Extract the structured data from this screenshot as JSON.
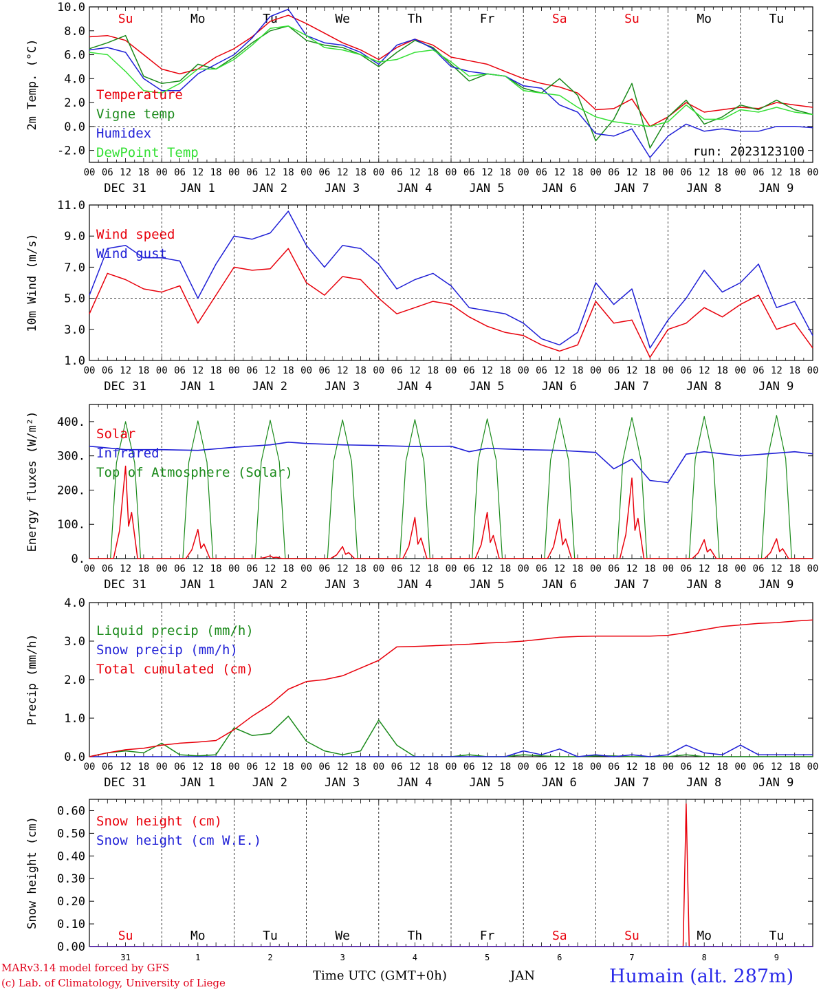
{
  "colors": {
    "red": "#e8000b",
    "green": "#1a8a1a",
    "blue": "#1f1fd6",
    "lightgreen": "#35e035",
    "darkred": "#cc0000"
  },
  "chart_data": [
    {
      "type": "line",
      "ylabel": "2m Temp. (°C)",
      "ylim": [
        -3,
        10
      ],
      "yticks": [
        "10.0",
        "8.0",
        "6.0",
        "4.0",
        "2.0",
        "0.0",
        "-2.0"
      ],
      "ytick_values": [
        10,
        8,
        6,
        4,
        2,
        0,
        -2
      ],
      "run_label": "run: 2023123100",
      "weekdays": [
        "Su",
        "Mo",
        "Tu",
        "We",
        "Th",
        "Fr",
        "Sa",
        "Su",
        "Mo",
        "Tu"
      ],
      "weekday_colors": [
        "red",
        "black",
        "black",
        "black",
        "black",
        "black",
        "red",
        "red",
        "black",
        "black"
      ],
      "x_hours": [
        0,
        6,
        12,
        18,
        24,
        30,
        36,
        42,
        48,
        54,
        60,
        66,
        72,
        78,
        84,
        90,
        96,
        102,
        108,
        114,
        120,
        126,
        132,
        138,
        144,
        150,
        156,
        162,
        168,
        174,
        180,
        186,
        192,
        198,
        204,
        210,
        216,
        222,
        228,
        234,
        240
      ],
      "series": [
        {
          "name": "Temperature",
          "color": "red",
          "values": [
            7.5,
            7.6,
            7.2,
            6.0,
            4.8,
            4.4,
            4.8,
            5.8,
            6.5,
            7.5,
            8.8,
            9.3,
            8.6,
            7.8,
            7.0,
            6.4,
            5.6,
            6.6,
            7.3,
            6.8,
            5.8,
            5.5,
            5.2,
            4.6,
            4.0,
            3.6,
            3.3,
            2.8,
            1.4,
            1.5,
            2.3,
            0.0,
            0.8,
            2.0,
            1.2,
            1.4,
            1.6,
            1.5,
            2.0,
            1.8,
            1.6
          ]
        },
        {
          "name": "Vigne temp",
          "color": "green",
          "values": [
            6.5,
            7.0,
            7.6,
            4.2,
            3.6,
            3.8,
            5.2,
            4.8,
            5.8,
            7.0,
            8.0,
            8.4,
            7.2,
            6.8,
            6.6,
            6.0,
            5.0,
            6.2,
            7.2,
            6.6,
            5.2,
            3.8,
            4.4,
            4.2,
            3.2,
            2.8,
            4.0,
            2.6,
            -1.2,
            0.6,
            3.6,
            -1.8,
            0.8,
            2.2,
            0.2,
            0.8,
            1.8,
            1.4,
            2.2,
            1.4,
            1.0
          ]
        },
        {
          "name": "Humidex",
          "color": "blue",
          "values": [
            6.4,
            6.6,
            6.2,
            4.0,
            3.0,
            3.0,
            4.4,
            5.2,
            6.0,
            7.4,
            9.2,
            9.8,
            7.6,
            7.0,
            6.8,
            6.2,
            5.2,
            6.8,
            7.3,
            6.5,
            5.0,
            4.6,
            4.4,
            4.2,
            3.4,
            3.2,
            1.8,
            1.2,
            -0.6,
            -0.8,
            -0.2,
            -2.6,
            -0.8,
            0.2,
            -0.4,
            -0.2,
            -0.4,
            -0.4,
            0.0,
            0.0,
            -0.1
          ]
        },
        {
          "name": "DewPoint Temp",
          "color": "lightgreen",
          "values": [
            6.2,
            6.0,
            4.6,
            3.0,
            2.8,
            3.6,
            4.8,
            4.8,
            5.6,
            6.8,
            8.2,
            8.4,
            7.6,
            6.6,
            6.4,
            6.0,
            5.4,
            5.6,
            6.2,
            6.4,
            5.4,
            4.2,
            4.4,
            4.2,
            3.0,
            2.8,
            2.6,
            1.6,
            0.8,
            0.4,
            0.2,
            0.0,
            0.4,
            1.8,
            0.6,
            0.6,
            1.4,
            1.2,
            1.6,
            1.2,
            1.0
          ]
        }
      ]
    },
    {
      "type": "line",
      "ylabel": "10m Wind (m/s)",
      "ylim": [
        1,
        11
      ],
      "yticks": [
        "11.0",
        "9.0",
        "7.0",
        "5.0",
        "3.0",
        "1.0"
      ],
      "ytick_values": [
        11,
        9,
        7,
        5,
        3,
        1
      ],
      "x_hours": [
        0,
        6,
        12,
        18,
        24,
        30,
        36,
        42,
        48,
        54,
        60,
        66,
        72,
        78,
        84,
        90,
        96,
        102,
        108,
        114,
        120,
        126,
        132,
        138,
        144,
        150,
        156,
        162,
        168,
        174,
        180,
        186,
        192,
        198,
        204,
        210,
        216,
        222,
        228,
        234,
        240
      ],
      "series": [
        {
          "name": "Wind speed",
          "color": "red",
          "values": [
            4.0,
            6.6,
            6.2,
            5.6,
            5.4,
            5.8,
            3.4,
            5.2,
            7.0,
            6.8,
            6.9,
            8.2,
            6.0,
            5.2,
            6.4,
            6.2,
            5.0,
            4.0,
            4.4,
            4.8,
            4.6,
            3.8,
            3.2,
            2.8,
            2.6,
            2.0,
            1.6,
            2.0,
            4.8,
            3.4,
            3.6,
            1.2,
            3.0,
            3.4,
            4.4,
            3.8,
            4.6,
            5.2,
            3.0,
            3.4,
            1.8
          ]
        },
        {
          "name": "Wind gust",
          "color": "blue",
          "values": [
            5.2,
            8.2,
            8.4,
            7.6,
            7.6,
            7.4,
            5.0,
            7.2,
            9.0,
            8.8,
            9.2,
            10.6,
            8.4,
            7.0,
            8.4,
            8.2,
            7.2,
            5.6,
            6.2,
            6.6,
            5.8,
            4.4,
            4.2,
            4.0,
            3.4,
            2.4,
            2.0,
            2.8,
            6.0,
            4.6,
            5.6,
            1.8,
            3.6,
            5.0,
            6.8,
            5.4,
            6.0,
            7.2,
            4.4,
            4.8,
            2.6
          ]
        }
      ]
    },
    {
      "type": "line",
      "ylabel": "Energy fluxes (W/m²)",
      "ylim": [
        0,
        450
      ],
      "yticks": [
        "400.",
        "300.",
        "200.",
        "100.",
        "0."
      ],
      "ytick_values": [
        400,
        300,
        200,
        100,
        0
      ],
      "toa_peaks": [
        400,
        402,
        404,
        405,
        406,
        408,
        410,
        412,
        415,
        418
      ],
      "solar_peaks": [
        270,
        85,
        8,
        35,
        120,
        135,
        115,
        235,
        55,
        58
      ],
      "infrared_hours": [
        0,
        12,
        24,
        36,
        48,
        60,
        66,
        72,
        84,
        96,
        108,
        120,
        126,
        132,
        144,
        156,
        168,
        174,
        180,
        186,
        192,
        198,
        204,
        216,
        228,
        234,
        240
      ],
      "infrared_values": [
        328,
        318,
        318,
        316,
        325,
        332,
        340,
        336,
        332,
        330,
        327,
        328,
        312,
        322,
        318,
        316,
        310,
        262,
        290,
        228,
        222,
        305,
        312,
        300,
        308,
        312,
        306
      ],
      "series": [
        {
          "name": "Solar",
          "color": "red"
        },
        {
          "name": "Infrared",
          "color": "blue"
        },
        {
          "name": "Top of Atmosphere (Solar)",
          "color": "green"
        }
      ]
    },
    {
      "type": "line",
      "ylabel": "Precip (mm/h)",
      "ylim": [
        0,
        4
      ],
      "yticks": [
        "4.0",
        "3.0",
        "2.0",
        "1.0",
        "0.0"
      ],
      "ytick_values": [
        4,
        3,
        2,
        1,
        0
      ],
      "x_hours": [
        0,
        6,
        12,
        18,
        24,
        30,
        36,
        42,
        48,
        54,
        60,
        66,
        72,
        78,
        84,
        90,
        96,
        102,
        108,
        114,
        120,
        126,
        132,
        138,
        144,
        150,
        156,
        162,
        168,
        174,
        180,
        186,
        192,
        198,
        204,
        210,
        216,
        222,
        228,
        234,
        240
      ],
      "series": [
        {
          "name": "Liquid precip (mm/h)",
          "color": "green",
          "values": [
            0.0,
            0.1,
            0.15,
            0.1,
            0.35,
            0.05,
            0.02,
            0.05,
            0.75,
            0.55,
            0.6,
            1.05,
            0.4,
            0.15,
            0.05,
            0.15,
            0.95,
            0.3,
            0.0,
            0.0,
            0.0,
            0.05,
            0.0,
            0.0,
            0.05,
            0.02,
            0.0,
            0.0,
            0.02,
            0.02,
            0.0,
            0.0,
            0.0,
            0.05,
            0.0,
            0.0,
            0.0,
            0.0,
            0.0,
            0.0,
            0.0
          ]
        },
        {
          "name": "Snow precip (mm/h)",
          "color": "blue",
          "values": [
            0.0,
            0.0,
            0.0,
            0.0,
            0.0,
            0.0,
            0.0,
            0.0,
            0.0,
            0.0,
            0.0,
            0.0,
            0.0,
            0.0,
            0.0,
            0.0,
            0.0,
            0.0,
            0.0,
            0.0,
            0.0,
            0.0,
            0.0,
            0.0,
            0.15,
            0.05,
            0.2,
            0.0,
            0.05,
            0.0,
            0.05,
            0.0,
            0.05,
            0.3,
            0.1,
            0.05,
            0.3,
            0.05,
            0.05,
            0.05,
            0.05
          ]
        },
        {
          "name": "Total cumulated (cm)",
          "color": "red",
          "values": [
            0.0,
            0.1,
            0.18,
            0.22,
            0.3,
            0.35,
            0.38,
            0.42,
            0.7,
            1.05,
            1.35,
            1.75,
            1.95,
            2.0,
            2.1,
            2.3,
            2.5,
            2.85,
            2.86,
            2.88,
            2.9,
            2.92,
            2.95,
            2.97,
            3.0,
            3.05,
            3.1,
            3.12,
            3.13,
            3.13,
            3.13,
            3.13,
            3.15,
            3.22,
            3.3,
            3.38,
            3.42,
            3.46,
            3.48,
            3.52,
            3.55
          ]
        }
      ]
    },
    {
      "type": "line",
      "ylabel": "Snow height (cm)",
      "ylim": [
        0,
        0.65
      ],
      "yticks": [
        "0.60",
        "0.50",
        "0.40",
        "0.30",
        "0.20",
        "0.10",
        "0.00"
      ],
      "ytick_values": [
        0.6,
        0.5,
        0.4,
        0.3,
        0.2,
        0.1,
        0.0
      ],
      "weekdays": [
        "Su",
        "Mo",
        "Tu",
        "We",
        "Th",
        "Fr",
        "Sa",
        "Su",
        "Mo",
        "Tu"
      ],
      "weekday_colors": [
        "red",
        "black",
        "black",
        "black",
        "black",
        "black",
        "red",
        "red",
        "black",
        "black"
      ],
      "day_numbers": [
        "31",
        "1",
        "2",
        "3",
        "4",
        "5",
        "6",
        "7",
        "8",
        "9"
      ],
      "spike_hour": 198,
      "spike_value": 0.63,
      "series": [
        {
          "name": "Snow height (cm)",
          "color": "red"
        },
        {
          "name": "Snow height (cm W.E.)",
          "color": "blue"
        }
      ]
    }
  ],
  "hour_labels": [
    "00",
    "06",
    "12",
    "18"
  ],
  "day_labels": [
    "DEC 31",
    "JAN  1",
    "JAN  2",
    "JAN  3",
    "JAN  4",
    "JAN  5",
    "JAN  6",
    "JAN  7",
    "JAN  8",
    "JAN  9"
  ],
  "footer": {
    "model": "MARv3.14 model forced by GFS",
    "lab": "(c) Lab. of Climatology, University of Liege",
    "xlabel": "Time UTC (GMT+0h)",
    "month": "JAN",
    "station": "Humain (alt. 287m)"
  }
}
